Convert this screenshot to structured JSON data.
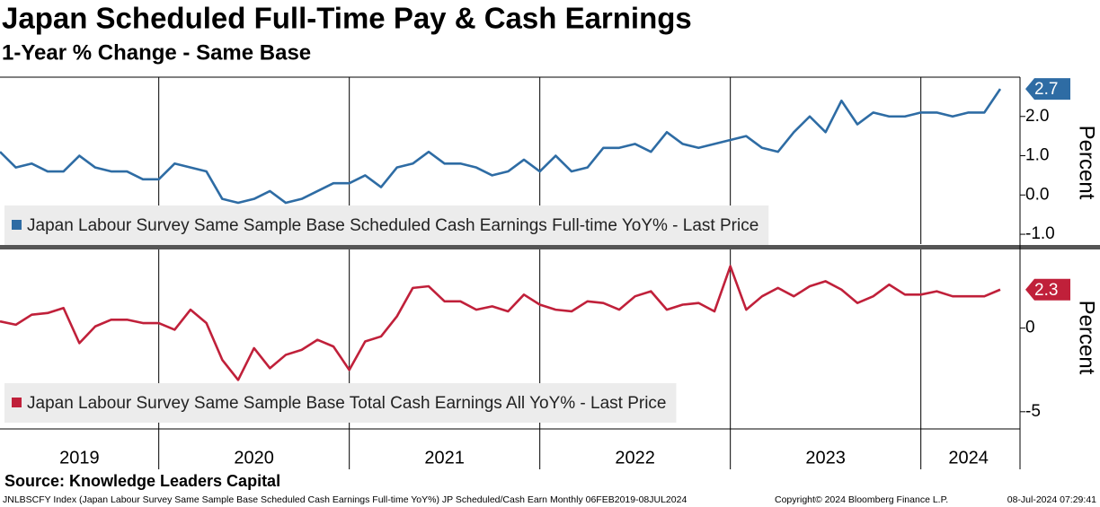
{
  "title": "Japan Scheduled Full-Time Pay & Cash Earnings",
  "subtitle": "1-Year % Change - Same Base",
  "source": "Source: Knowledge Leaders Capital",
  "footer_left": "JNLBSCFY Index (Japan Labour Survey Same Sample Base Scheduled Cash Earnings Full-time YoY%) JP Scheduled/Cash Earn  Monthly 06FEB2019-08JUL2024",
  "footer_copyright": "Copyright© 2024 Bloomberg Finance L.P.",
  "footer_date": "08-Jul-2024 07:29:41",
  "chart_data": [
    {
      "type": "line",
      "y_label": "Percent",
      "ylim": [
        -1.25,
        3.0
      ],
      "yticks": [
        {
          "value": -1,
          "label": "-1.0"
        },
        {
          "value": 0,
          "label": "0.0"
        },
        {
          "value": 1,
          "label": "1.0"
        },
        {
          "value": 2,
          "label": "2.0"
        }
      ],
      "series": [
        {
          "name": "Japan Labour Survey Same Sample Base Scheduled Cash Earnings Full-time YoY% - Last Price",
          "color": "#2e6ca4",
          "values": [
            1.1,
            0.7,
            0.8,
            0.6,
            0.6,
            1.0,
            0.7,
            0.6,
            0.6,
            0.4,
            0.4,
            0.8,
            0.7,
            0.6,
            -0.1,
            -0.2,
            -0.1,
            0.1,
            -0.2,
            -0.1,
            0.1,
            0.3,
            0.3,
            0.5,
            0.2,
            0.7,
            0.8,
            1.1,
            0.8,
            0.8,
            0.7,
            0.5,
            0.6,
            0.9,
            0.6,
            1.0,
            0.6,
            0.7,
            1.2,
            1.2,
            1.3,
            1.1,
            1.6,
            1.3,
            1.2,
            1.3,
            1.4,
            1.5,
            1.2,
            1.1,
            1.6,
            2.0,
            1.6,
            2.4,
            1.8,
            2.1,
            2.0,
            2.0,
            2.1,
            2.1,
            2.0,
            2.1,
            2.1,
            2.7
          ]
        }
      ]
    },
    {
      "type": "line",
      "y_label": "Percent",
      "ylim": [
        -5.6,
        4.7
      ],
      "yticks": [
        -5,
        0
      ],
      "categories": [
        null,
        null,
        null,
        null,
        null,
        "2019",
        null,
        null,
        null,
        null,
        null,
        null,
        null,
        null,
        null,
        null,
        "2020",
        null,
        null,
        null,
        null,
        null,
        null,
        null,
        null,
        null,
        null,
        null,
        "2021",
        null,
        null,
        null,
        null,
        null,
        null,
        null,
        null,
        null,
        null,
        null,
        "2022",
        null,
        null,
        null,
        null,
        null,
        null,
        null,
        null,
        null,
        null,
        null,
        "2023",
        null,
        null,
        null,
        null,
        null,
        null,
        null,
        null,
        "2024",
        null,
        null
      ],
      "series": [
        {
          "name": "Japan Labour Survey Same Sample Base Total Cash Earnings All YoY% - Last Price",
          "color": "#c0203a",
          "values": [
            0.4,
            0.2,
            0.8,
            0.9,
            1.2,
            -0.9,
            0.1,
            0.5,
            0.5,
            0.3,
            0.3,
            -0.1,
            1.1,
            0.3,
            -1.9,
            -3.1,
            -1.2,
            -2.4,
            -1.6,
            -1.3,
            -0.7,
            -1.1,
            -2.5,
            -0.8,
            -0.5,
            0.7,
            2.4,
            2.5,
            1.6,
            1.6,
            1.1,
            1.3,
            1.0,
            2.0,
            1.4,
            1.1,
            1.0,
            1.6,
            1.5,
            1.1,
            1.9,
            2.2,
            1.1,
            1.4,
            1.5,
            1.0,
            3.7,
            1.1,
            1.9,
            2.4,
            1.9,
            2.5,
            2.8,
            2.3,
            1.5,
            1.9,
            2.6,
            2.0,
            2.0,
            2.2,
            1.9,
            1.9,
            1.9,
            2.3
          ]
        }
      ]
    }
  ]
}
